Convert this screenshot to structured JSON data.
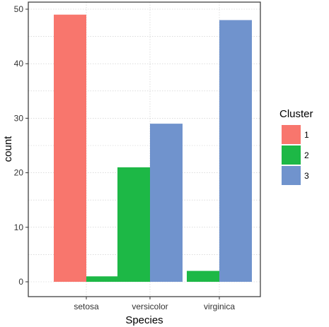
{
  "chart_data": {
    "type": "bar",
    "xlabel": "Species",
    "ylabel": "count",
    "categories": [
      "setosa",
      "versicolor",
      "virginica"
    ],
    "ylim": [
      0,
      50
    ],
    "yticks": [
      0,
      10,
      20,
      30,
      40,
      50
    ],
    "grid": true,
    "legend": {
      "title": "Cluster",
      "position": "right",
      "entries": [
        {
          "label": "1",
          "color": "#F8766D"
        },
        {
          "label": "2",
          "color": "#1DB846"
        },
        {
          "label": "3",
          "color": "#7093CD"
        }
      ]
    },
    "bars": [
      {
        "category": "setosa",
        "cluster": "1",
        "value": 49
      },
      {
        "category": "setosa",
        "cluster": "2",
        "value": 1
      },
      {
        "category": "versicolor",
        "cluster": "2",
        "value": 21
      },
      {
        "category": "versicolor",
        "cluster": "3",
        "value": 29
      },
      {
        "category": "virginica",
        "cluster": "2",
        "value": 2
      },
      {
        "category": "virginica",
        "cluster": "3",
        "value": 48
      }
    ]
  }
}
